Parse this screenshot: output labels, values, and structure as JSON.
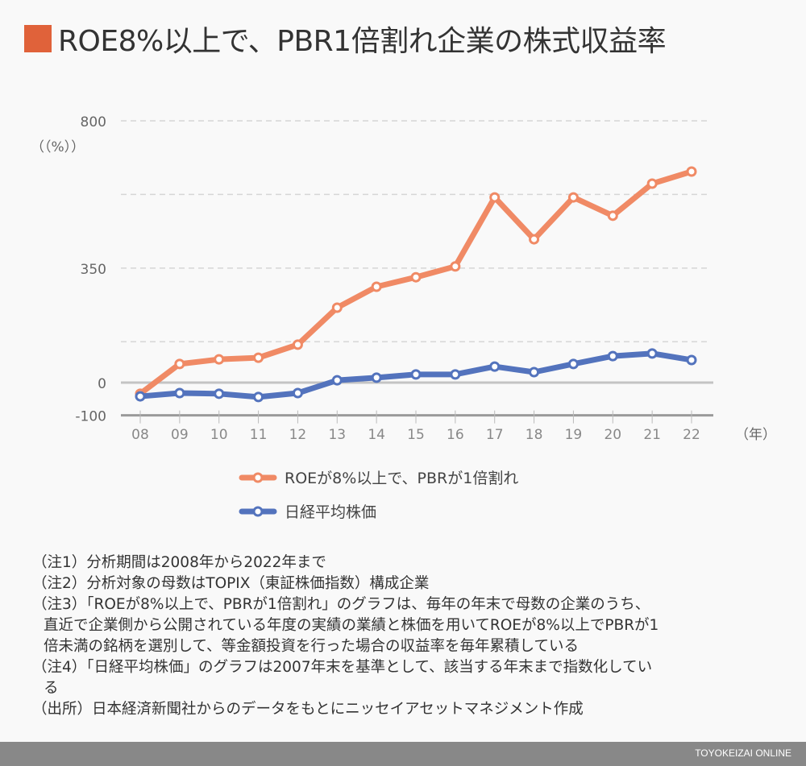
{
  "title": "ROE8%以上で、PBR1倍割れ企業の株式収益率",
  "colors": {
    "title_square": "#e0623a",
    "roe": "#f08a65",
    "nikkei": "#5373bd"
  },
  "chart_data": {
    "type": "line",
    "title": "ROE8%以上で、PBR1倍割れ企業の株式収益率",
    "ylabel": "（（%））",
    "xlabel": "（年）",
    "categories": [
      "08",
      "09",
      "10",
      "11",
      "12",
      "13",
      "14",
      "15",
      "16",
      "17",
      "18",
      "19",
      "20",
      "21",
      "22"
    ],
    "ylim": [
      -100,
      800
    ],
    "yticks": [
      800,
      350,
      0,
      -100
    ],
    "gridlines": [
      800,
      575,
      350,
      125
    ],
    "grid": true,
    "legend_position": "bottom",
    "series": [
      {
        "name": "ROEが8%以上で、PBRが1倍割れ",
        "color": "#f08a65",
        "values": [
          -34,
          57,
          71,
          76,
          116,
          229,
          293,
          322,
          355,
          566,
          438,
          566,
          510,
          608,
          645
        ]
      },
      {
        "name": "日経平均株価",
        "color": "#5373bd",
        "values": [
          -42,
          -32,
          -34,
          -44,
          -32,
          7,
          15,
          25,
          25,
          49,
          32,
          57,
          81,
          89,
          69
        ]
      }
    ]
  },
  "notes": [
    "（注1）分析期間は2008年から2022年まで",
    "（注2）分析対象の母数はTOPIX（東証株価指数）構成企業",
    "（注3）「ROEが8%以上で、PBRが1倍割れ」のグラフは、毎年の年末で母数の企業のうち、",
    "直近で企業側から公開されている年度の実績の業績と株価を用いてROEが8%以上でPBRが1",
    "倍未満の銘柄を選別して、等金額投資を行った場合の収益率を毎年累積している",
    "（注4）「日経平均株価」のグラフは2007年末を基準として、該当する年末まで指数化してい",
    "る",
    "（出所）日本経済新聞社からのデータをもとにニッセイアセットマネジメント作成"
  ],
  "footer": "TOYOKEIZAI ONLINE"
}
